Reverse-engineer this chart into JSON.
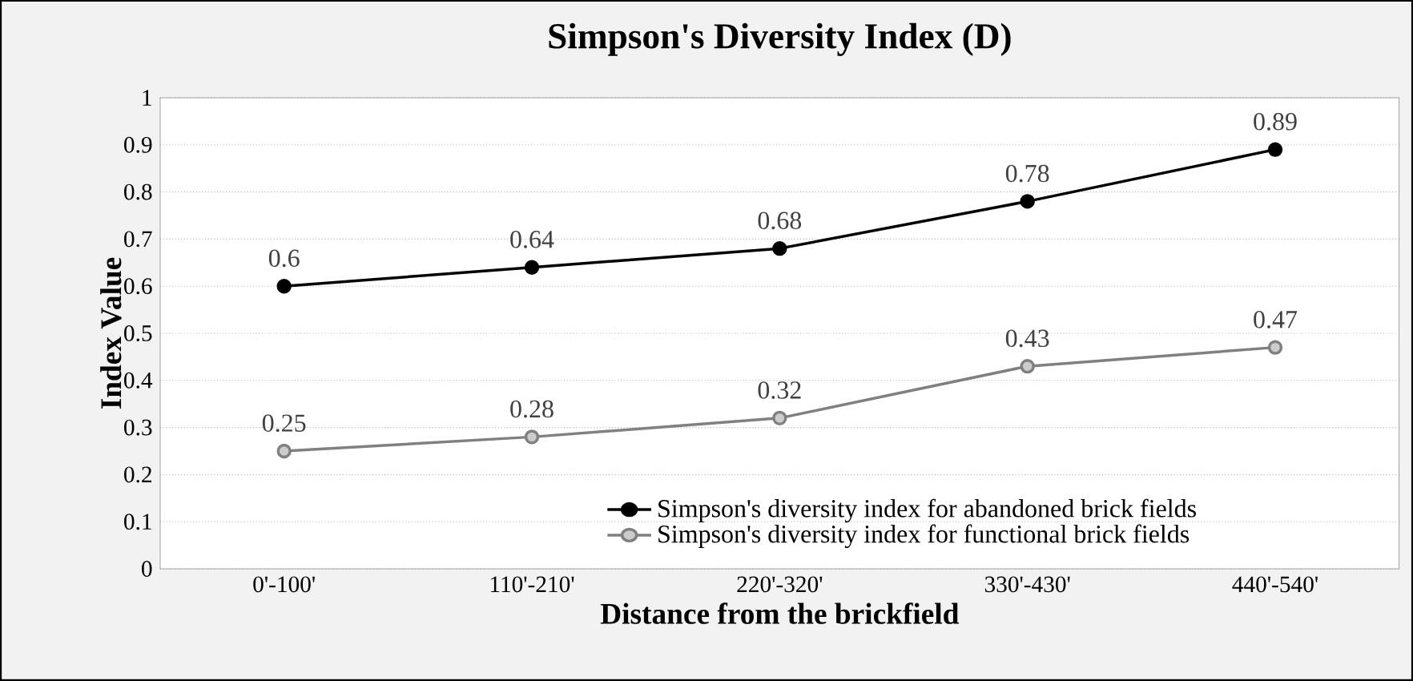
{
  "chart_data": {
    "type": "line",
    "title": "Simpson's Diversity Index (D)",
    "xlabel": "Distance from the brickfield",
    "ylabel": "Index Value",
    "categories": [
      "0'-100'",
      "110'-210'",
      "220'-320'",
      "330'-430'",
      "440'-540'"
    ],
    "series": [
      {
        "name": "Simpson's diversity index for abandoned brick fields",
        "color": "#000000",
        "values": [
          0.6,
          0.64,
          0.68,
          0.78,
          0.89
        ]
      },
      {
        "name": "Simpson's diversity index for functional brick fields",
        "color": "#808080",
        "values": [
          0.25,
          0.28,
          0.32,
          0.43,
          0.47
        ]
      }
    ],
    "ylim": [
      0,
      1
    ],
    "yticks": [
      0,
      0.1,
      0.2,
      0.3,
      0.4,
      0.5,
      0.6,
      0.7,
      0.8,
      0.9,
      1
    ],
    "grid": "y",
    "legend": "bottom",
    "marker": "circle",
    "line_style": "solid",
    "data_labels": true
  }
}
